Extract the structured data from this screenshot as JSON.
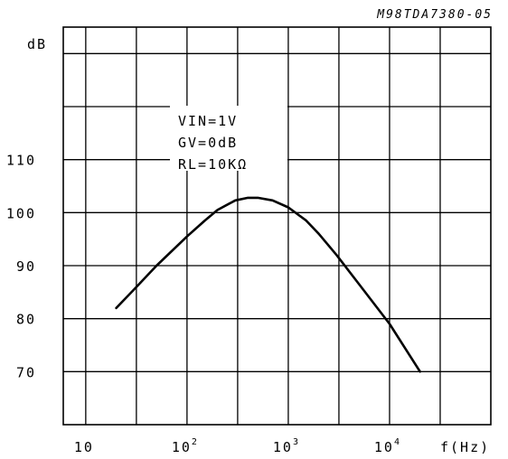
{
  "chart_data": {
    "type": "line",
    "reference": "M98TDA7380-05",
    "ylabel": "dB",
    "xlabel": "f(Hz)",
    "x_scale": "log",
    "xlim": [
      6,
      100000
    ],
    "ylim": [
      60,
      135
    ],
    "grid": true,
    "x_ticks": [
      {
        "value": 10,
        "base": "10",
        "exp": ""
      },
      {
        "value": 100,
        "base": "10",
        "exp": "2"
      },
      {
        "value": 1000,
        "base": "10",
        "exp": "3"
      },
      {
        "value": 10000,
        "base": "10",
        "exp": "4"
      }
    ],
    "y_ticks": [
      70,
      80,
      90,
      100,
      110
    ],
    "annotations": [
      "VIN=1V",
      "GV=0dB",
      "RL=10KΩ"
    ],
    "series": [
      {
        "x": [
          20,
          30,
          50,
          100,
          150,
          200,
          300,
          400,
          500,
          700,
          1000,
          1500,
          2000,
          3000,
          5000,
          10000,
          20000
        ],
        "y": [
          82,
          85.5,
          90,
          95.5,
          98.5,
          100.5,
          102.3,
          102.8,
          102.8,
          102.3,
          101,
          98.5,
          96,
          92,
          86.5,
          79,
          70
        ]
      }
    ]
  }
}
